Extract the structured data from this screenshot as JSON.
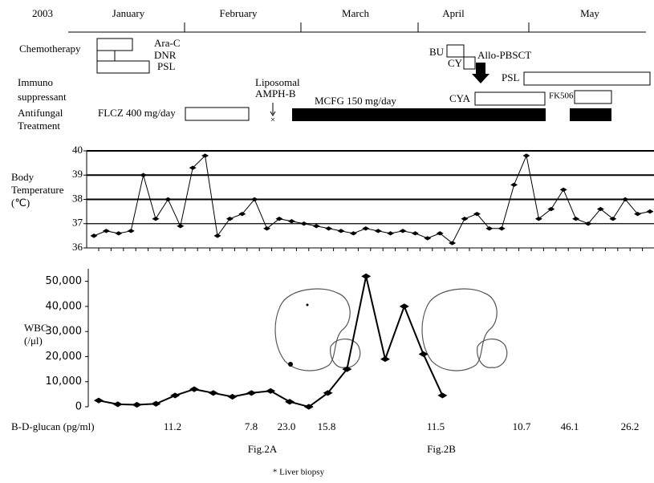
{
  "year": "2003",
  "months": [
    "January",
    "February",
    "March",
    "April",
    "May"
  ],
  "rows": {
    "chemotherapy": "Chemotherapy",
    "immuno": [
      "Immuno",
      "suppressant"
    ],
    "antifungal": [
      "Antifungal",
      "Treatment"
    ]
  },
  "treatments": {
    "ara_c": "Ara-C",
    "dnr": "DNR",
    "psl1": "PSL",
    "bu": "BU",
    "cy": "CY",
    "allo": "Allo-PBSCT",
    "psl2": "PSL",
    "cya": "CYA",
    "fk506": "FK506",
    "flcz": "FLCZ 400 mg/day",
    "amph": [
      "Liposomal",
      "AMPH-B"
    ],
    "mcfg": "MCFG 150 mg/day"
  },
  "chart_data": [
    {
      "type": "line",
      "ylabel": [
        "Body",
        "Temperature",
        "(℃)"
      ],
      "categories": [
        null,
        null,
        null,
        null,
        null,
        null,
        null,
        null,
        null,
        null,
        null,
        null,
        null,
        null,
        null,
        null,
        null,
        null,
        null,
        null,
        null,
        null,
        null,
        null,
        null,
        null,
        null,
        null,
        null,
        null,
        null,
        null,
        null,
        null,
        null,
        null,
        null,
        null,
        null,
        null,
        null,
        null,
        null,
        null,
        null,
        null
      ],
      "values": [
        36.5,
        36.7,
        36.6,
        36.7,
        39.0,
        37.2,
        38.0,
        36.9,
        39.3,
        39.8,
        36.5,
        37.2,
        37.4,
        38.0,
        36.8,
        37.2,
        37.1,
        37.0,
        36.9,
        36.8,
        36.7,
        36.6,
        36.8,
        36.7,
        36.6,
        36.7,
        36.6,
        36.4,
        36.6,
        36.2,
        37.2,
        37.4,
        36.8,
        36.8,
        38.6,
        39.8,
        37.2,
        37.6,
        38.4,
        37.2,
        37.0,
        37.6,
        37.2,
        38.0,
        37.4,
        37.5
      ],
      "color": "#000000",
      "ylim": [
        36,
        40
      ],
      "yticks": [
        36,
        37,
        38,
        39,
        40
      ],
      "grid": true
    },
    {
      "type": "line",
      "ylabel": [
        "WBC",
        "(/μl)"
      ],
      "categories": [
        null,
        null,
        null,
        null,
        null,
        null,
        null,
        null,
        null,
        null,
        null,
        null,
        null,
        null,
        null,
        null,
        null,
        null,
        null
      ],
      "values": [
        2500,
        1000,
        800,
        1200,
        4500,
        7000,
        5500,
        4000,
        5500,
        6300,
        2000,
        0,
        5500,
        15000,
        52000,
        19000,
        40000,
        21000,
        4500
      ],
      "color": "#000000",
      "ylim": [
        0,
        55000
      ],
      "yticks": [
        0,
        {
          "value": 10000,
          "label": "10,000"
        },
        {
          "value": 20000,
          "label": "20,000"
        },
        {
          "value": 30000,
          "label": "30,000"
        },
        {
          "value": 40000,
          "label": "40,000"
        },
        {
          "value": 50000,
          "label": "50,000"
        }
      ]
    }
  ],
  "glucan": {
    "label": "Β-D-glucan (pg/ml)",
    "values": [
      "11.2",
      "7.8",
      "23.0",
      "15.8",
      "11.5",
      "10.7",
      "46.1",
      "26.2"
    ]
  },
  "figure_refs": [
    "Fig.2A",
    "Fig.2B"
  ],
  "footnote": "* Liver biopsy"
}
